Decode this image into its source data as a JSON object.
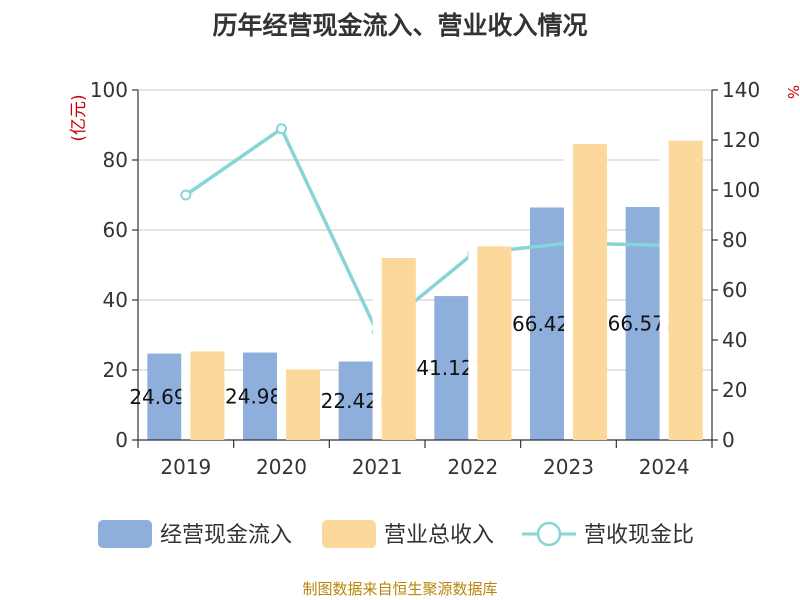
{
  "chart_data": {
    "type": "bar",
    "title": "历年经营现金流入、营业收入情况",
    "categories": [
      "2019",
      "2020",
      "2021",
      "2022",
      "2023",
      "2024"
    ],
    "y_left": {
      "label": "(亿元)",
      "ylim": [
        0,
        100
      ],
      "ticks": [
        0,
        20,
        40,
        60,
        80,
        100
      ]
    },
    "y_right": {
      "label": "%",
      "ylim": [
        0,
        140
      ],
      "ticks": [
        0,
        20,
        40,
        60,
        80,
        100,
        120,
        140
      ]
    },
    "series": [
      {
        "name": "经营现金流入",
        "type": "bar",
        "axis": "left",
        "color": "#8eaedb",
        "values": [
          24.697,
          24.988,
          22.424,
          41.123,
          66.428,
          66.572
        ],
        "data_labels": [
          "24.697",
          "24.988",
          "22.424",
          "41.123",
          "66.428",
          "66.572"
        ]
      },
      {
        "name": "营业总收入",
        "type": "bar",
        "axis": "left",
        "color": "#fcd89a",
        "values": [
          25.3,
          20.1,
          52.0,
          55.3,
          84.5,
          85.5
        ]
      },
      {
        "name": "营收现金比",
        "type": "line",
        "axis": "right",
        "color": "#88d4d6",
        "values": [
          98.0,
          124.5,
          43.2,
          74.5,
          78.8,
          77.9
        ]
      }
    ],
    "grid": true,
    "legend": "bottom"
  },
  "footer": {
    "source": "制图数据来自恒生聚源数据库"
  }
}
